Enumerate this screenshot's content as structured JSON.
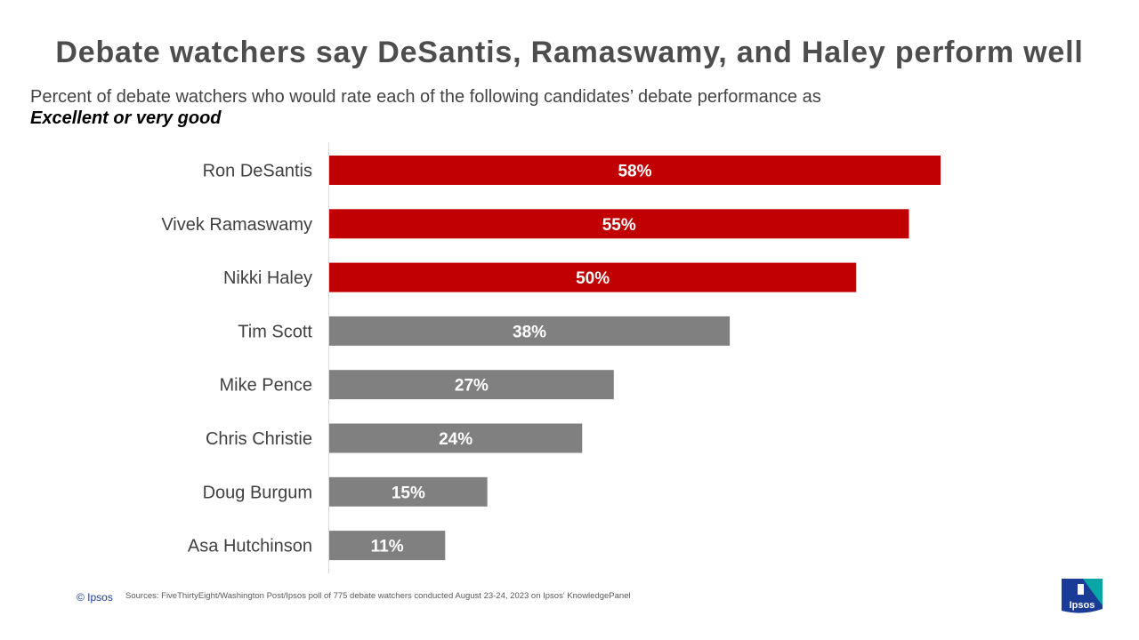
{
  "title": "Debate watchers say DeSantis, Ramaswamy, and Haley perform well",
  "subtitle": "Percent of debate watchers who would rate each of the following candidates’ debate performance as",
  "subtitle_emphasis": "Excellent or very good",
  "footer": {
    "copyright": "© Ipsos",
    "sources_label": "Sources:",
    "sources_text": "FiveThirtyEight/Washington Post/Ipsos poll of 775 debate watchers conducted August 23-24, 2023 on Ipsos' KnowledgePanel"
  },
  "logo_text": "Ipsos",
  "colors": {
    "highlight": "#c00000",
    "other": "#808080",
    "logo_blue": "#1a3c96",
    "logo_teal": "#0aa5a5"
  },
  "chart_data": {
    "type": "bar",
    "orientation": "horizontal",
    "categories": [
      "Ron DeSantis",
      "Vivek Ramaswamy",
      "Nikki Haley",
      "Tim Scott",
      "Mike Pence",
      "Chris Christie",
      "Doug Burgum",
      "Asa Hutchinson"
    ],
    "values": [
      58,
      55,
      50,
      38,
      27,
      24,
      15,
      11
    ],
    "data_labels": [
      "58%",
      "55%",
      "50%",
      "38%",
      "27%",
      "24%",
      "15%",
      "11%"
    ],
    "highlighted": [
      true,
      true,
      true,
      false,
      false,
      false,
      false,
      false
    ],
    "unit": "%",
    "xlim": [
      0,
      58
    ],
    "grid": false,
    "legend": "none"
  }
}
